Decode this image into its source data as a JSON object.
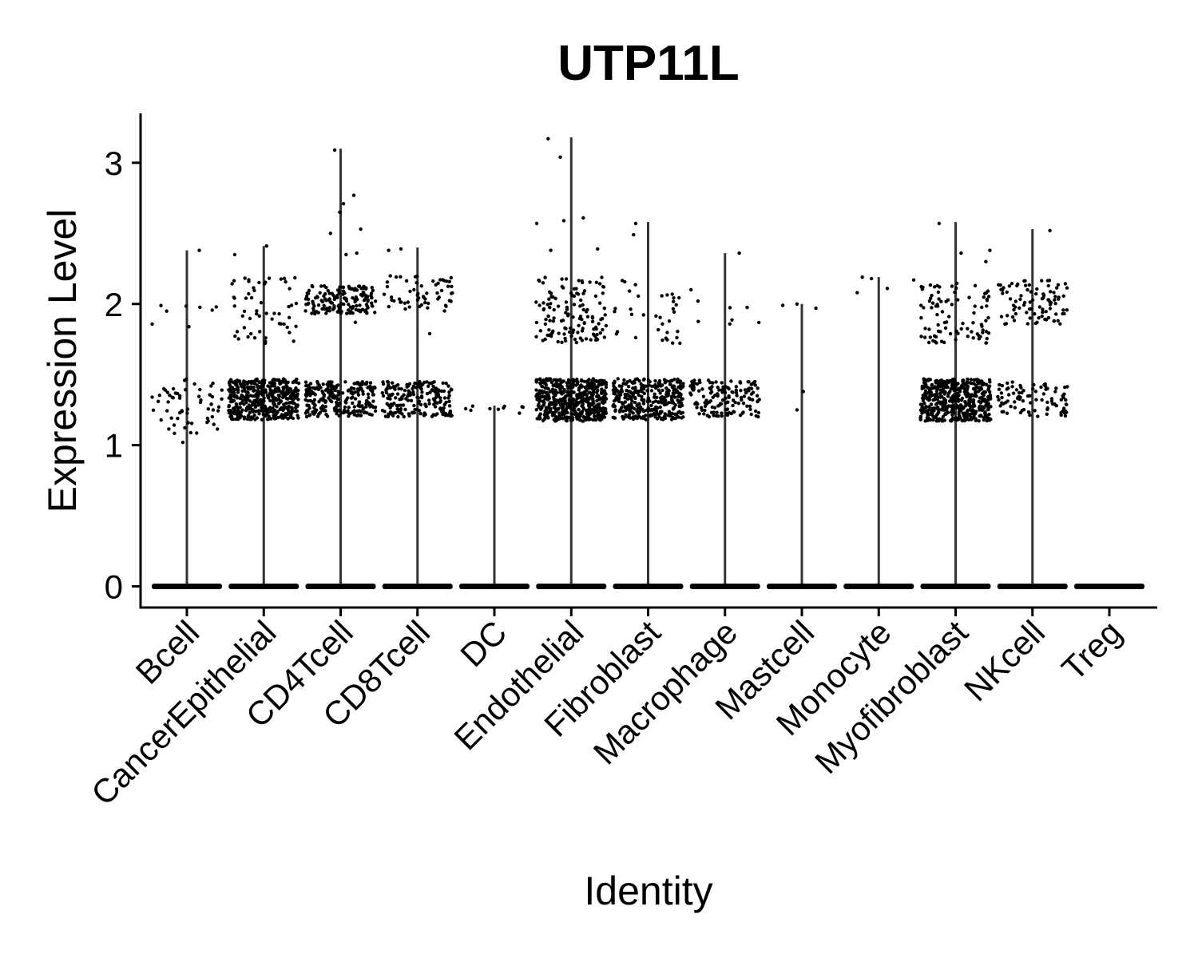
{
  "chart_data": {
    "type": "violin",
    "title": "UTP11L",
    "xlabel": "Identity",
    "ylabel": "Expression Level",
    "ylim": [
      -0.15,
      3.35
    ],
    "yticks": [
      0,
      1,
      2,
      3
    ],
    "grid": false,
    "legend": "none",
    "point_color": "#000000",
    "violin_color": "#333333",
    "categories": [
      "Bcell",
      "CancerEpithelial",
      "CD4Tcell",
      "CD8Tcell",
      "DC",
      "Endothelial",
      "Fibroblast",
      "Macrophage",
      "Mastcell",
      "Monocyte",
      "Myofibroblast",
      "NKcell",
      "Treg"
    ],
    "series": [
      {
        "category": "Bcell",
        "max": 2.38,
        "bands": [
          {
            "lo": 1.08,
            "hi": 1.47,
            "n": 60
          },
          {
            "lo": 1.75,
            "hi": 2.1,
            "n": 8
          }
        ],
        "outliers": [
          2.38,
          1.02
        ]
      },
      {
        "category": "CancerEpithelial",
        "max": 2.41,
        "bands": [
          {
            "lo": 1.18,
            "hi": 1.47,
            "n": 450
          },
          {
            "lo": 1.72,
            "hi": 2.2,
            "n": 55
          }
        ],
        "outliers": [
          2.41,
          2.35
        ]
      },
      {
        "category": "CD4Tcell",
        "max": 3.1,
        "bands": [
          {
            "lo": 1.2,
            "hi": 1.45,
            "n": 250
          },
          {
            "lo": 1.93,
            "hi": 2.13,
            "n": 160
          }
        ],
        "outliers": [
          3.09,
          2.77,
          2.71,
          2.65,
          2.53,
          2.5,
          2.36,
          2.35,
          1.87
        ]
      },
      {
        "category": "CD8Tcell",
        "max": 2.4,
        "bands": [
          {
            "lo": 1.2,
            "hi": 1.45,
            "n": 200
          },
          {
            "lo": 1.95,
            "hi": 2.2,
            "n": 60
          }
        ],
        "outliers": [
          2.39,
          2.38,
          1.79
        ]
      },
      {
        "category": "DC",
        "max": 1.28,
        "bands": [
          {
            "lo": 1.22,
            "hi": 1.28,
            "n": 10
          }
        ],
        "outliers": []
      },
      {
        "category": "Endothelial",
        "max": 3.18,
        "bands": [
          {
            "lo": 1.17,
            "hi": 1.47,
            "n": 550
          },
          {
            "lo": 1.72,
            "hi": 2.2,
            "n": 130
          }
        ],
        "outliers": [
          3.17,
          3.04,
          2.61,
          2.59,
          2.57,
          2.39,
          2.38
        ]
      },
      {
        "category": "Fibroblast",
        "max": 2.58,
        "bands": [
          {
            "lo": 1.18,
            "hi": 1.47,
            "n": 350
          },
          {
            "lo": 1.72,
            "hi": 2.2,
            "n": 35
          }
        ],
        "outliers": [
          2.57,
          2.49
        ]
      },
      {
        "category": "Macrophage",
        "max": 2.36,
        "bands": [
          {
            "lo": 1.2,
            "hi": 1.46,
            "n": 150
          },
          {
            "lo": 1.78,
            "hi": 2.12,
            "n": 8
          }
        ],
        "outliers": [
          2.36
        ]
      },
      {
        "category": "Mastcell",
        "max": 2.0,
        "bands": [],
        "outliers": [
          2.0,
          1.99,
          1.97,
          1.38,
          1.25
        ]
      },
      {
        "category": "Monocyte",
        "max": 2.19,
        "bands": [],
        "outliers": [
          2.19,
          2.18,
          2.17,
          2.11,
          2.08
        ]
      },
      {
        "category": "Myofibroblast",
        "max": 2.58,
        "bands": [
          {
            "lo": 1.17,
            "hi": 1.47,
            "n": 480
          },
          {
            "lo": 1.72,
            "hi": 2.15,
            "n": 90
          }
        ],
        "outliers": [
          2.57,
          2.38,
          2.36,
          2.3
        ]
      },
      {
        "category": "NKcell",
        "max": 2.53,
        "bands": [
          {
            "lo": 1.2,
            "hi": 1.45,
            "n": 90
          },
          {
            "lo": 1.85,
            "hi": 2.17,
            "n": 90
          }
        ],
        "outliers": [
          2.52
        ]
      },
      {
        "category": "Treg",
        "max": 0.0,
        "bands": [],
        "outliers": []
      }
    ]
  }
}
